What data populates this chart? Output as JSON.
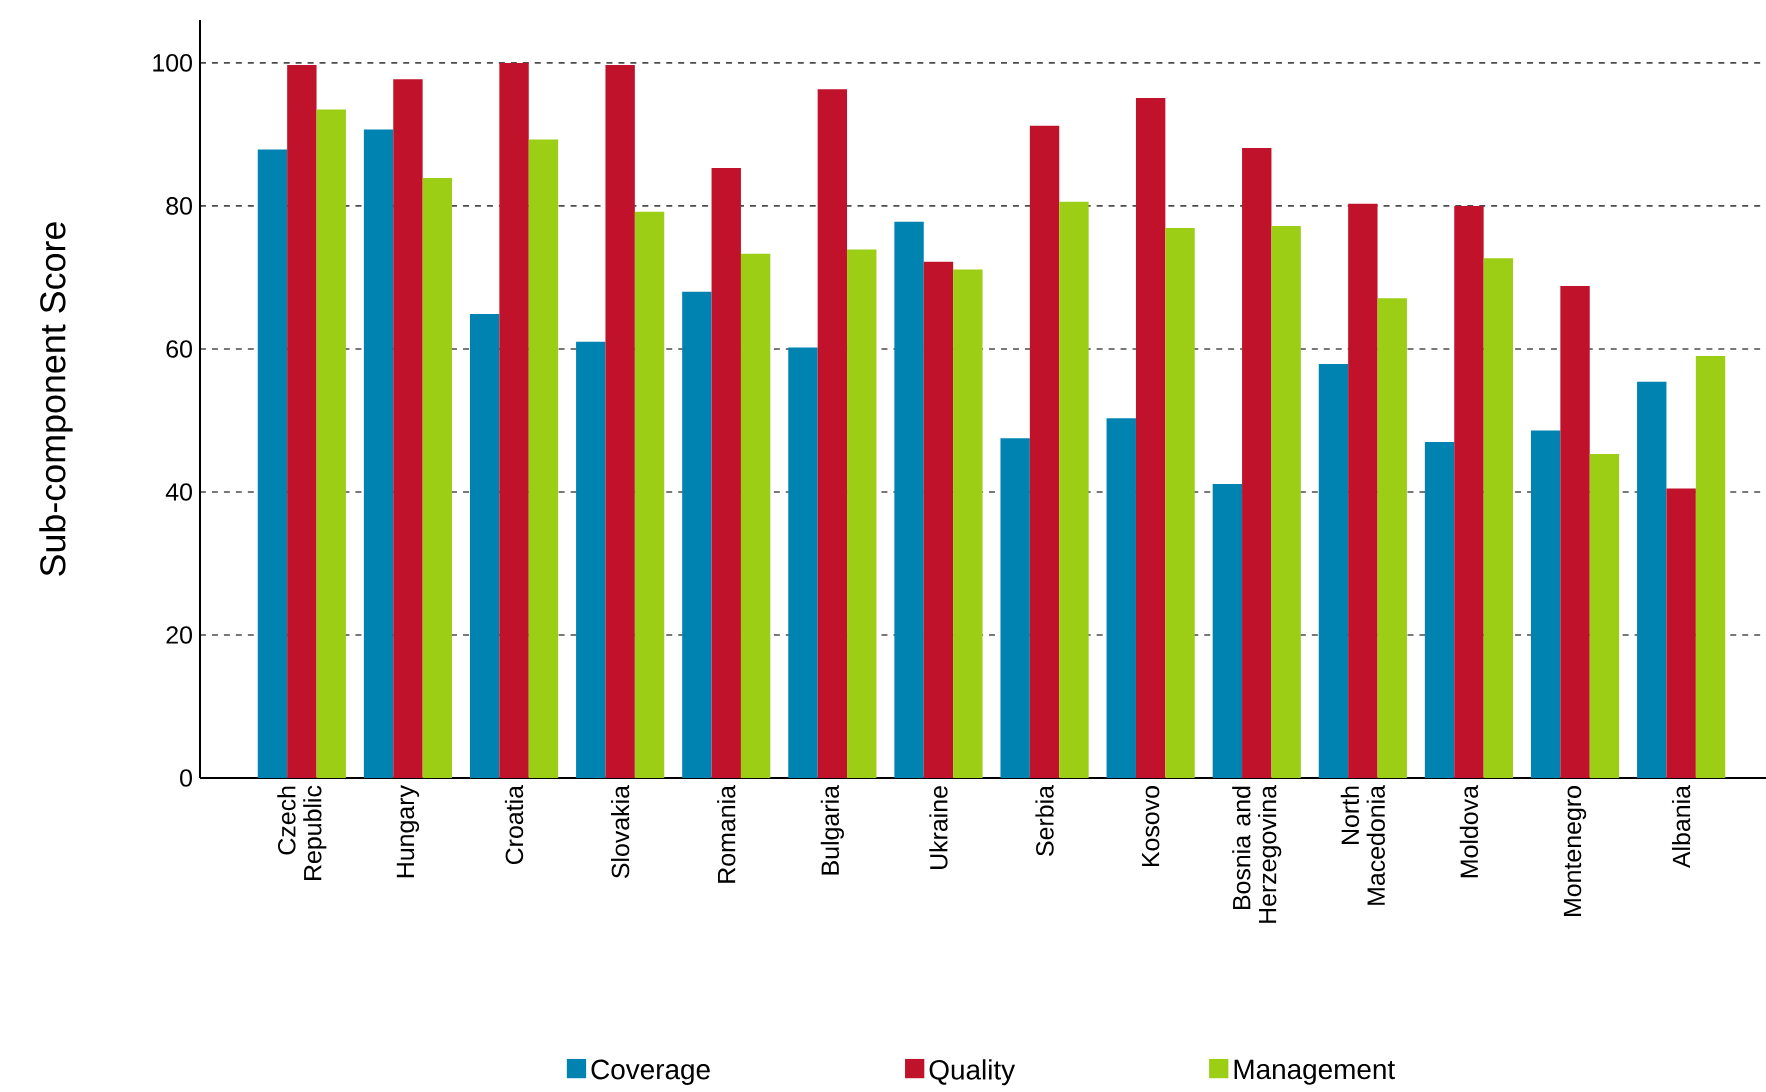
{
  "chart_data": {
    "type": "bar",
    "ylabel": "Sub-component Score",
    "categories": [
      "Czech Republic",
      "Hungary",
      "Croatia",
      "Slovakia",
      "Romania",
      "Bulgaria",
      "Ukraine",
      "Serbia",
      "Kosovo",
      "Bosnia and Herzegovina",
      "North Macedonia",
      "Moldova",
      "Montenegro",
      "Albania"
    ],
    "series": [
      {
        "name": "Coverage",
        "color": "#0083b0",
        "values": [
          87.9,
          90.7,
          64.9,
          61.0,
          68.0,
          60.2,
          77.8,
          47.5,
          50.3,
          41.1,
          57.9,
          47.0,
          48.6,
          55.4
        ]
      },
      {
        "name": "Quality",
        "color": "#c0122a",
        "values": [
          99.7,
          97.7,
          100,
          99.7,
          85.3,
          96.3,
          72.2,
          91.2,
          95.1,
          88.1,
          80.3,
          80.0,
          68.8,
          40.5
        ]
      },
      {
        "name": "Management",
        "color": "#9dce16",
        "values": [
          93.5,
          83.9,
          89.3,
          79.2,
          73.3,
          73.9,
          71.1,
          80.6,
          76.9,
          77.2,
          67.1,
          72.7,
          45.3,
          59.0
        ]
      }
    ],
    "ylim": [
      0,
      106
    ],
    "yticks": [
      0,
      20,
      40,
      60,
      80,
      100
    ],
    "grid": "y",
    "legend": "bottom"
  }
}
